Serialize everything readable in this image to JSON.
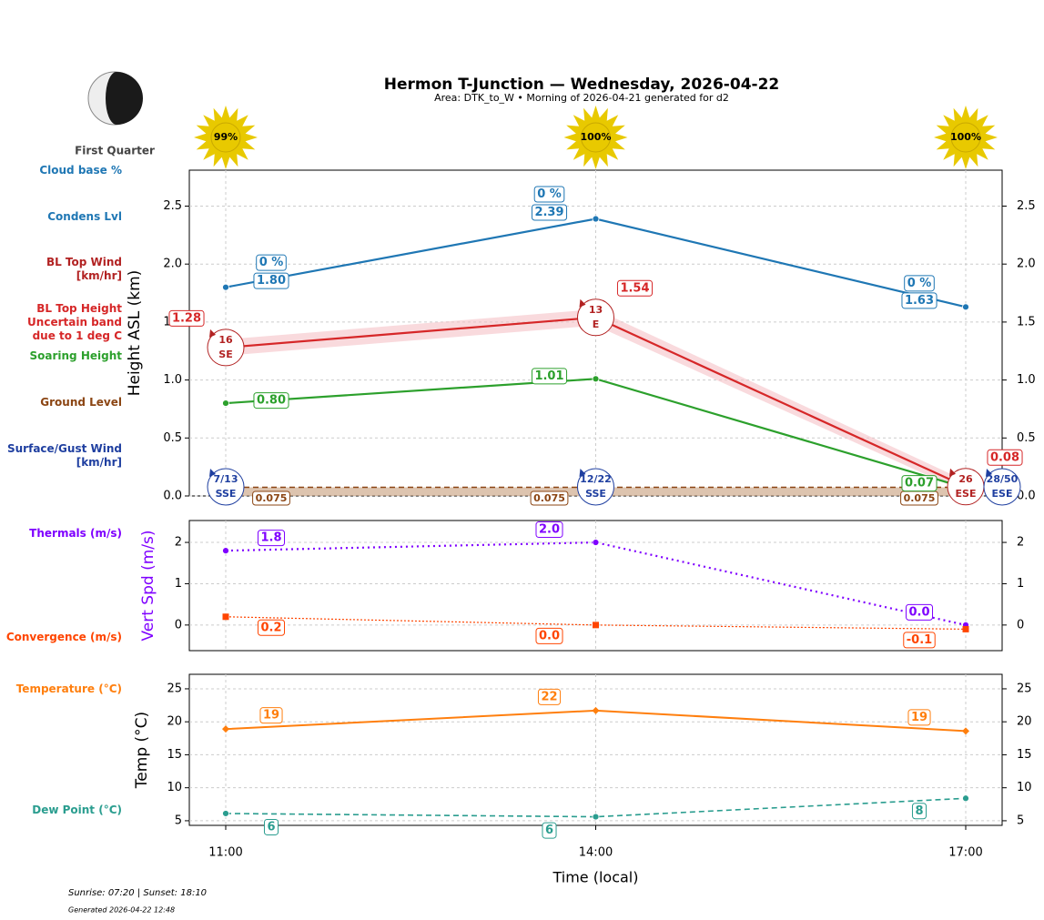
{
  "header": {
    "title": "Hermon T-Junction — Wednesday, 2026-04-22",
    "subtitle": "Area: DTK_to_W • Morning of 2026-04-21 generated for d2"
  },
  "moon": {
    "label": "First Quarter"
  },
  "sun": {
    "values": [
      99,
      100,
      100
    ],
    "value_labels": [
      "99%",
      "100%",
      "100%"
    ]
  },
  "footer": {
    "sun_times": "Sunrise: 07:20 | Sunset: 18:10",
    "generated": "Generated 2026-04-22 12:48"
  },
  "chart_data": [
    {
      "type": "line",
      "ylabel": "Height ASL (km)",
      "ylim": [
        0,
        2.81
      ],
      "grid": true,
      "yticks": [
        {
          "value": 0,
          "label": "0.0"
        },
        0.5,
        {
          "value": 1,
          "label": "1.0"
        },
        1.5,
        {
          "value": 2,
          "label": "2.0"
        },
        2.5
      ],
      "series": [
        {
          "name": "Cloud base %",
          "color": "#1f77b4",
          "kind": "label",
          "values": [
            0,
            0,
            0
          ],
          "value_labels": [
            "0 %",
            "0 %",
            "0 %"
          ]
        },
        {
          "name": "Condens Lvl",
          "color": "#1f77b4",
          "kind": "line",
          "values": [
            1.8,
            2.39,
            1.63
          ],
          "value_labels": [
            "1.80",
            "2.39",
            "1.63"
          ]
        },
        {
          "name": "BL Top Wind\n[km/hr]",
          "color": "#b22222",
          "kind": "wind",
          "values": [
            16,
            13,
            26
          ],
          "directions": [
            "SE",
            "E",
            "ESE"
          ]
        },
        {
          "name": "BL Top Height\nUncertain band\ndue to 1 deg C",
          "color": "#d62728",
          "kind": "line",
          "values": [
            1.28,
            1.54,
            0.08
          ],
          "value_labels": [
            "1.28",
            "1.54",
            "0.08"
          ],
          "band_lower": [
            1.21,
            1.47,
            0.03
          ],
          "band_upper": [
            1.35,
            1.61,
            0.13
          ],
          "band_color": "#f5c2c7"
        },
        {
          "name": "Soaring Height",
          "color": "#2ca02c",
          "kind": "line",
          "values": [
            0.8,
            1.01,
            0.07
          ],
          "value_labels": [
            "0.80",
            "1.01",
            "0.07"
          ]
        },
        {
          "name": "Ground Level",
          "color": "#8b4513",
          "kind": "ground",
          "values": [
            0.075,
            0.075,
            0.075
          ],
          "value_labels": [
            "0.075",
            "0.075",
            "0.075"
          ]
        },
        {
          "name": "Surface/Gust Wind\n[km/hr]",
          "color": "#1f3fa0",
          "kind": "wind",
          "values": [
            7,
            12,
            28
          ],
          "gusts": [
            13,
            22,
            50
          ],
          "value_labels": [
            "7/13",
            "12/22",
            "28/50"
          ],
          "directions": [
            "SSE",
            "SSE",
            "ESE"
          ]
        }
      ]
    },
    {
      "type": "line",
      "ylabel": "Vert Spd (m/s)",
      "ylabel_color": "#7f00ff",
      "ylim": [
        -0.62,
        2.53
      ],
      "grid": true,
      "yticks": [
        0,
        1,
        2
      ],
      "series": [
        {
          "name": "Thermals (m/s)",
          "color": "#7f00ff",
          "kind": "line",
          "dash": "2,4",
          "width": 2.2,
          "marker": "circle",
          "values": [
            1.8,
            2.0,
            0.0
          ],
          "value_labels": [
            "1.8",
            "2.0",
            "0.0"
          ]
        },
        {
          "name": "Convergence (m/s)",
          "color": "#ff4500",
          "kind": "line",
          "dash": "2,2",
          "width": 1.2,
          "marker": "square",
          "values": [
            0.2,
            0.0,
            -0.1
          ],
          "value_labels": [
            "0.2",
            "0.0",
            "-0.1"
          ]
        }
      ]
    },
    {
      "type": "line",
      "ylabel": "Temp (°C)",
      "xlabel": "Time (local)",
      "categories": [
        "11:00",
        "14:00",
        "17:00"
      ],
      "ylim": [
        4.3,
        27.2
      ],
      "grid": true,
      "yticks": [
        5,
        10,
        15,
        20,
        25
      ],
      "series": [
        {
          "name": "Temperature (°C)",
          "color": "#ff7f0e",
          "kind": "line",
          "width": 2,
          "marker": "diamond",
          "values": [
            18.9,
            21.7,
            18.6
          ],
          "value_labels": [
            "19",
            "22",
            "19"
          ]
        },
        {
          "name": "Dew Point (°C)",
          "color": "#2a9d8f",
          "kind": "line",
          "dash": "6,4",
          "width": 1.6,
          "marker": "circle",
          "values": [
            6.1,
            5.6,
            8.4
          ],
          "value_labels": [
            "6",
            "6",
            "8"
          ]
        }
      ]
    }
  ]
}
